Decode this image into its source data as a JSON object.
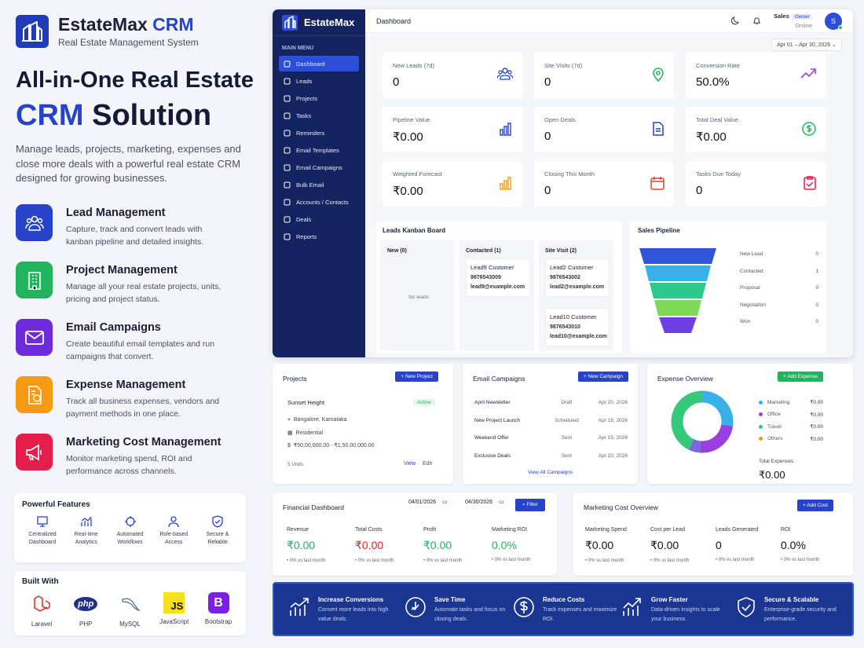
{
  "brand": {
    "name": "EstateMax",
    "crm": "CRM",
    "subtitle": "Real Estate Management System"
  },
  "hero": {
    "line1": "All-in-One Real Estate",
    "crm": "CRM",
    "solution": "Solution",
    "desc": "Manage leads, projects, marketing, expenses and close more deals with a powerful real estate CRM designed for growing businesses."
  },
  "features": [
    {
      "title": "Lead Management",
      "desc": "Capture, track and convert leads with kanban pipeline and detailed insights.",
      "icon": "users-icon",
      "color": "#2743c9"
    },
    {
      "title": "Project Management",
      "desc": "Manage all your real estate projects, units, pricing and project status.",
      "icon": "building-icon",
      "color": "#22b35e"
    },
    {
      "title": "Email Campaigns",
      "desc": "Create beautiful email templates and run campaigns that convert.",
      "icon": "mail-icon",
      "color": "#6d2bd9"
    },
    {
      "title": "Expense Management",
      "desc": "Track all business expenses, vendors and payment methods in one place.",
      "icon": "receipt-icon",
      "color": "#f59a12"
    },
    {
      "title": "Marketing Cost Management",
      "desc": "Monitor marketing spend, ROI and performance across channels.",
      "icon": "megaphone-icon",
      "color": "#e51d4a"
    }
  ],
  "powerful": {
    "title": "Powerful Features",
    "items": [
      {
        "line1": "Centralized",
        "line2": "Dashboard"
      },
      {
        "line1": "Real-time",
        "line2": "Analytics"
      },
      {
        "line1": "Automated",
        "line2": "Workflows"
      },
      {
        "line1": "Role-based",
        "line2": "Access"
      },
      {
        "line1": "Secure &",
        "line2": "Reliable"
      }
    ]
  },
  "built": {
    "title": "Built With",
    "items": [
      "Laravel",
      "PHP",
      "MySQL",
      "JavaScript",
      "Bootstrap"
    ],
    "php": "php",
    "js": "JS",
    "bs": "B"
  },
  "app": {
    "brand": "EstateMax",
    "menu_title": "MAIN MENU",
    "nav": [
      "Dashboard",
      "Leads",
      "Projects",
      "Tasks",
      "Reminders",
      "Email Templates",
      "Email Campaigns",
      "Bulk Email",
      "Accounts / Contacts",
      "Deals",
      "Reports"
    ],
    "page_title": "Dashboard",
    "user": "Sales",
    "role": "Owner",
    "status": "Online",
    "avatar": "S",
    "date_range": "Apr 01 – Apr 30, 2026",
    "stats": [
      {
        "label": "New Leads (7d)",
        "value": "0"
      },
      {
        "label": "Site Visits (7d)",
        "value": "0"
      },
      {
        "label": "Conversion Rate",
        "value": "50.0%"
      },
      {
        "label": "Pipeline Value",
        "value": "₹0.00"
      },
      {
        "label": "Open Deals",
        "value": "0"
      },
      {
        "label": "Total Deal Value",
        "value": "₹0.00"
      },
      {
        "label": "Weighted Forecast",
        "value": "₹0.00"
      },
      {
        "label": "Closing This Month",
        "value": "0"
      },
      {
        "label": "Tasks Due Today",
        "value": "0"
      }
    ],
    "kanban": {
      "title": "Leads Kanban Board",
      "cols": [
        "New (0)",
        "Contacted (1)",
        "Site Visit (2)"
      ],
      "empty": "No leads",
      "cards": [
        {
          "name": "Lead9 Customer",
          "phone": "9876543009",
          "email": "lead9@example.com"
        },
        {
          "name": "Lead2 Customer",
          "phone": "9876543002",
          "email": "lead2@example.com"
        },
        {
          "name": "Lead10 Customer",
          "phone": "9876543010",
          "email": "lead10@example.com"
        }
      ]
    },
    "pipeline": {
      "title": "Sales Pipeline",
      "rows": [
        {
          "stage": "New Lead",
          "count": "0"
        },
        {
          "stage": "Contacted",
          "count": "1"
        },
        {
          "stage": "Proposal",
          "count": "0"
        },
        {
          "stage": "Negotiation",
          "count": "0"
        },
        {
          "stage": "Won",
          "count": "0"
        }
      ]
    }
  },
  "projects": {
    "title": "Projects",
    "new_btn": "+ New Project",
    "name": "Sunset Height",
    "status": "Active",
    "location": "Bangalore, Karnataka",
    "type": "Residential",
    "price": "₹50,00,000.00 - ₹1,50,00,000.00",
    "units": "5 Units",
    "view": "View",
    "edit": "Edit"
  },
  "campaigns": {
    "title": "Email Campaigns",
    "new_btn": "+ New Campaign",
    "rows": [
      {
        "name": "April Newsletter",
        "status": "Draft",
        "date": "Apr 20, 2026"
      },
      {
        "name": "New Project Launch",
        "status": "Scheduled",
        "date": "Apr 18, 2026"
      },
      {
        "name": "Weekend Offer",
        "status": "Sent",
        "date": "Apr 15, 2026"
      },
      {
        "name": "Exclusive Deals",
        "status": "Sent",
        "date": "Apr 10, 2026"
      }
    ],
    "view_all": "View All Campaigns"
  },
  "expense": {
    "title": "Expense Overview",
    "add_btn": "+ Add Expense",
    "legend": [
      {
        "name": "Marketing",
        "value": "₹0.00",
        "color": "#3ab0e8"
      },
      {
        "name": "Office",
        "value": "₹0.00",
        "color": "#9a3fe0"
      },
      {
        "name": "Travel",
        "value": "₹0.00",
        "color": "#35c97a"
      },
      {
        "name": "Others",
        "value": "₹0.00",
        "color": "#f59a12"
      }
    ],
    "total_label": "Total Expenses",
    "total": "₹0.00"
  },
  "financial": {
    "title": "Financial Dashboard",
    "from": "04/01/2026",
    "to": "04/30/2026",
    "filter": "Filter",
    "metrics": [
      {
        "label": "Revenue",
        "value": "₹0.00",
        "change": "0% vs last month",
        "color": "#22b35e"
      },
      {
        "label": "Total Costs",
        "value": "₹0.00",
        "change": "0% vs last month",
        "color": "#e51d2a"
      },
      {
        "label": "Profit",
        "value": "₹0.00",
        "change": "0% vs last month",
        "color": "#22b35e"
      },
      {
        "label": "Marketing ROI",
        "value": "0.0%",
        "change": "0% vs last month",
        "color": "#22b35e"
      }
    ]
  },
  "marketing": {
    "title": "Marketing Cost Overview",
    "add_btn": "+ Add Cost",
    "metrics": [
      {
        "label": "Marketing Spend",
        "value": "₹0.00",
        "change": "0% vs last month"
      },
      {
        "label": "Cost per Lead",
        "value": "₹0.00",
        "change": "0% vs last month"
      },
      {
        "label": "Leads Generated",
        "value": "0",
        "change": "0% vs last month"
      },
      {
        "label": "ROI",
        "value": "0.0%",
        "change": "0% vs last month"
      }
    ]
  },
  "banner": [
    {
      "title": "Increase Conversions",
      "desc": "Convert more leads into high value deals."
    },
    {
      "title": "Save Time",
      "desc": "Automate tasks and focus on closing deals."
    },
    {
      "title": "Reduce Costs",
      "desc": "Track expenses and maximize ROI."
    },
    {
      "title": "Grow Faster",
      "desc": "Data-driven insights to scale your business."
    },
    {
      "title": "Secure & Scalable",
      "desc": "Enterprise-grade security and performance."
    }
  ]
}
